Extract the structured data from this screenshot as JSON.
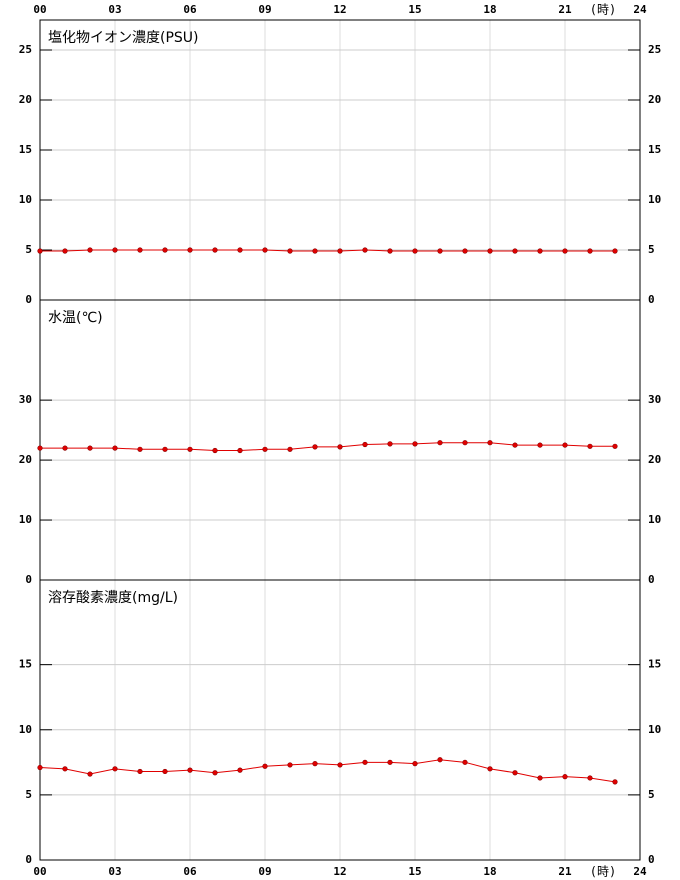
{
  "chart_data": [
    {
      "type": "line",
      "title": "塩化物イオン濃度(PSU)",
      "x_unit": "(時)",
      "x": [
        0,
        1,
        2,
        3,
        4,
        5,
        6,
        7,
        8,
        9,
        10,
        11,
        12,
        13,
        14,
        15,
        16,
        17,
        18,
        19,
        20,
        21,
        22,
        23
      ],
      "xlim": [
        0,
        24
      ],
      "xticks": [
        {
          "value": 0,
          "label": "00"
        },
        {
          "value": 3,
          "label": "03"
        },
        {
          "value": 6,
          "label": "06"
        },
        {
          "value": 9,
          "label": "09"
        },
        {
          "value": 12,
          "label": "12"
        },
        {
          "value": 15,
          "label": "15"
        },
        {
          "value": 18,
          "label": "18"
        },
        {
          "value": 21,
          "label": "21"
        },
        24
      ],
      "ylim": [
        0,
        28
      ],
      "yticks": [
        0,
        5,
        10,
        15,
        20,
        25
      ],
      "grid": true,
      "series": [
        {
          "name": "塩化物イオン濃度",
          "color": "#e00000",
          "values": [
            4.9,
            4.9,
            5.0,
            5.0,
            5.0,
            5.0,
            5.0,
            5.0,
            5.0,
            5.0,
            4.9,
            4.9,
            4.9,
            5.0,
            4.9,
            4.9,
            4.9,
            4.9,
            4.9,
            4.9,
            4.9,
            4.9,
            4.9,
            4.9
          ]
        }
      ]
    },
    {
      "type": "line",
      "title": "水温(℃)",
      "x": [
        0,
        1,
        2,
        3,
        4,
        5,
        6,
        7,
        8,
        9,
        10,
        11,
        12,
        13,
        14,
        15,
        16,
        17,
        18,
        19,
        20,
        21,
        22,
        23
      ],
      "xlim": [
        0,
        24
      ],
      "xticks": [
        {
          "value": 0,
          "label": "00"
        },
        {
          "value": 3,
          "label": "03"
        },
        {
          "value": 6,
          "label": "06"
        },
        {
          "value": 9,
          "label": "09"
        },
        {
          "value": 12,
          "label": "12"
        },
        {
          "value": 15,
          "label": "15"
        },
        {
          "value": 18,
          "label": "18"
        },
        {
          "value": 21,
          "label": "21"
        },
        24
      ],
      "ylim": [
        0,
        46.7
      ],
      "yticks": [
        0,
        10,
        20,
        30
      ],
      "grid": true,
      "series": [
        {
          "name": "水温",
          "color": "#e00000",
          "values": [
            22.0,
            22.0,
            22.0,
            22.0,
            21.8,
            21.8,
            21.8,
            21.6,
            21.6,
            21.8,
            21.8,
            22.2,
            22.2,
            22.6,
            22.7,
            22.7,
            22.9,
            22.9,
            22.9,
            22.5,
            22.5,
            22.5,
            22.3,
            22.3
          ]
        }
      ]
    },
    {
      "type": "line",
      "title": "溶存酸素濃度(mg/L)",
      "x_unit": "(時)",
      "x": [
        0,
        1,
        2,
        3,
        4,
        5,
        6,
        7,
        8,
        9,
        10,
        11,
        12,
        13,
        14,
        15,
        16,
        17,
        18,
        19,
        20,
        21,
        22,
        23
      ],
      "xlim": [
        0,
        24
      ],
      "xticks": [
        {
          "value": 0,
          "label": "00"
        },
        {
          "value": 3,
          "label": "03"
        },
        {
          "value": 6,
          "label": "06"
        },
        {
          "value": 9,
          "label": "09"
        },
        {
          "value": 12,
          "label": "12"
        },
        {
          "value": 15,
          "label": "15"
        },
        {
          "value": 18,
          "label": "18"
        },
        {
          "value": 21,
          "label": "21"
        },
        24
      ],
      "ylim": [
        0,
        21.5
      ],
      "yticks": [
        0,
        5,
        10,
        15
      ],
      "grid": true,
      "series": [
        {
          "name": "溶存酸素濃度",
          "color": "#e00000",
          "values": [
            7.1,
            7.0,
            6.6,
            7.0,
            6.8,
            6.8,
            6.9,
            6.7,
            6.9,
            7.2,
            7.3,
            7.4,
            7.3,
            7.5,
            7.5,
            7.4,
            7.7,
            7.5,
            7.0,
            6.7,
            6.3,
            6.4,
            6.3,
            6.0
          ]
        }
      ]
    }
  ]
}
